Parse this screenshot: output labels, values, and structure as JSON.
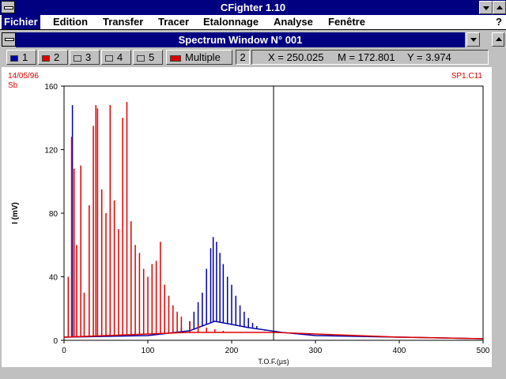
{
  "app": {
    "title": "CFighter 1.10"
  },
  "menu": {
    "items": [
      "Fichier",
      "Edition",
      "Transfer",
      "Tracer",
      "Etalonnage",
      "Analyse",
      "Fenêtre"
    ],
    "help": "?"
  },
  "window": {
    "title": "Spectrum Window N° 001"
  },
  "toolbar": {
    "curves": [
      {
        "label": "1",
        "color": "#0000a8"
      },
      {
        "label": "2",
        "color": "#e00000"
      },
      {
        "label": "3",
        "color": "#c0c0c0"
      },
      {
        "label": "4",
        "color": "#c0c0c0"
      },
      {
        "label": "5",
        "color": "#c0c0c0"
      }
    ],
    "multiple": {
      "label": "Multiple",
      "color": "#e00000"
    },
    "count": "2",
    "readout": {
      "x": "X = 250.025",
      "m": "M = 172.801",
      "y": "Y = 3.974"
    }
  },
  "plot": {
    "date": "14/05/96",
    "sample": "Sb",
    "file": "SP1.C11",
    "cursor_x": 250.025
  },
  "colors": {
    "series1": "#0000a8",
    "series2": "#e00000",
    "titlebar": "#000080"
  },
  "chart_data": {
    "type": "line",
    "xlabel": "T.O.F.(µs)",
    "ylabel": "I (mV)",
    "xlim": [
      0,
      500
    ],
    "ylim": [
      0,
      160
    ],
    "xticks": [
      0,
      100,
      200,
      300,
      400,
      500
    ],
    "yticks": [
      0,
      40,
      80,
      120,
      160
    ],
    "series": [
      {
        "color": "#0000a8",
        "peaks": [
          [
            10,
            148
          ],
          [
            140,
            8
          ],
          [
            150,
            12
          ],
          [
            155,
            18
          ],
          [
            160,
            24
          ],
          [
            165,
            30
          ],
          [
            170,
            45
          ],
          [
            175,
            58
          ],
          [
            178,
            65
          ],
          [
            182,
            62
          ],
          [
            186,
            55
          ],
          [
            190,
            48
          ],
          [
            195,
            40
          ],
          [
            200,
            35
          ],
          [
            205,
            28
          ],
          [
            210,
            22
          ],
          [
            215,
            18
          ],
          [
            220,
            14
          ],
          [
            225,
            11
          ],
          [
            230,
            9
          ],
          [
            240,
            6
          ],
          [
            250,
            5
          ]
        ],
        "baseline": [
          [
            0,
            2
          ],
          [
            100,
            3
          ],
          [
            150,
            6
          ],
          [
            180,
            12
          ],
          [
            220,
            8
          ],
          [
            260,
            5
          ],
          [
            300,
            3
          ],
          [
            400,
            2
          ],
          [
            500,
            1
          ]
        ]
      },
      {
        "color": "#e00000",
        "peaks": [
          [
            5,
            40
          ],
          [
            9,
            128
          ],
          [
            12,
            108
          ],
          [
            15,
            60
          ],
          [
            20,
            110
          ],
          [
            24,
            30
          ],
          [
            30,
            85
          ],
          [
            35,
            135
          ],
          [
            38,
            148
          ],
          [
            40,
            146
          ],
          [
            45,
            95
          ],
          [
            50,
            80
          ],
          [
            55,
            148
          ],
          [
            60,
            88
          ],
          [
            65,
            70
          ],
          [
            70,
            140
          ],
          [
            75,
            150
          ],
          [
            80,
            75
          ],
          [
            85,
            60
          ],
          [
            90,
            55
          ],
          [
            95,
            45
          ],
          [
            100,
            40
          ],
          [
            105,
            48
          ],
          [
            110,
            50
          ],
          [
            115,
            62
          ],
          [
            120,
            35
          ],
          [
            125,
            28
          ],
          [
            130,
            22
          ],
          [
            135,
            18
          ],
          [
            140,
            15
          ],
          [
            150,
            12
          ],
          [
            160,
            10
          ],
          [
            170,
            8
          ],
          [
            180,
            7
          ],
          [
            190,
            6
          ],
          [
            200,
            5
          ]
        ],
        "baseline": [
          [
            0,
            2
          ],
          [
            50,
            3
          ],
          [
            100,
            4
          ],
          [
            150,
            5
          ],
          [
            200,
            5
          ],
          [
            250,
            5
          ],
          [
            300,
            4
          ],
          [
            400,
            2
          ],
          [
            500,
            1
          ]
        ]
      }
    ]
  }
}
